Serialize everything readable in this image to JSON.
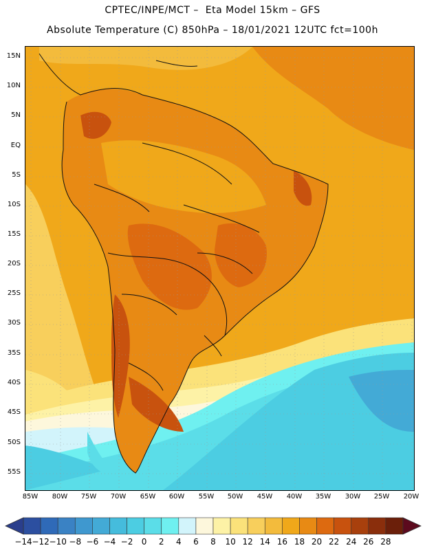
{
  "header": {
    "line1": "CPTEC/INPE/MCT –  Eta Model 15km – GFS",
    "line2": "Absolute Temperature (C) 850hPa – 18/01/2021 12UTC fct=100h"
  },
  "axes": {
    "lat_labels": [
      "15N",
      "10N",
      "5N",
      "EQ",
      "5S",
      "10S",
      "15S",
      "20S",
      "25S",
      "30S",
      "35S",
      "40S",
      "45S",
      "50S",
      "55S"
    ],
    "lon_labels": [
      "85W",
      "80W",
      "75W",
      "70W",
      "65W",
      "60W",
      "55W",
      "50W",
      "45W",
      "40W",
      "35W",
      "30W",
      "25W",
      "20W"
    ]
  },
  "colorbar": {
    "labels": [
      "-14",
      "-12",
      "-10",
      "-8",
      "-6",
      "-4",
      "-2",
      "0",
      "2",
      "4",
      "6",
      "8",
      "10",
      "12",
      "14",
      "16",
      "18",
      "20",
      "22",
      "24",
      "26",
      "28"
    ],
    "colors": [
      "#2c4fa0",
      "#2f6ab8",
      "#3a82c4",
      "#3f98cf",
      "#43aad6",
      "#45bcdc",
      "#4ccde2",
      "#5bdde8",
      "#6ff0f0",
      "#d2f4fb",
      "#fdf7dc",
      "#fdf2a6",
      "#fbe27a",
      "#f8cf5c",
      "#f3bb3c",
      "#f0a81a",
      "#e88a14",
      "#dd6a10",
      "#c8520e",
      "#a8400d",
      "#8a2e0c",
      "#6b1f0a"
    ],
    "under_color": "#2a3e8c",
    "over_color": "#5c0a1e"
  },
  "map": {
    "background_color": "#f0a81a"
  }
}
